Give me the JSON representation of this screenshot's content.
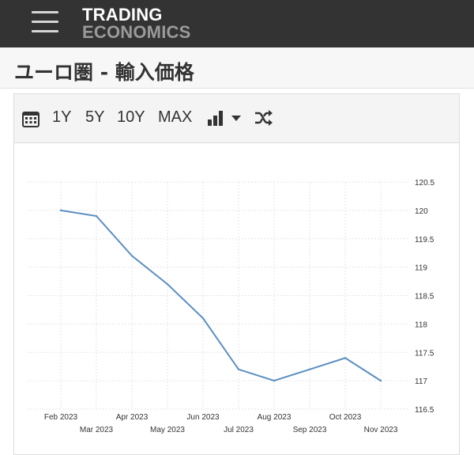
{
  "header": {
    "logo_line1": "TRADING",
    "logo_line2": "ECONOMICS"
  },
  "page": {
    "title": "ユーロ圏 - 輸入価格"
  },
  "toolbar": {
    "icons": [
      "calendar-icon",
      "bar-chart-icon",
      "caret-down-icon",
      "shuffle-icon"
    ],
    "range_1y": "1Y",
    "range_5y": "5Y",
    "range_10y": "10Y",
    "range_max": "MAX"
  },
  "colors": {
    "line": "#5b8fc2",
    "topbar": "#333333",
    "grid": "#e6e6e6"
  },
  "chart_data": {
    "type": "line",
    "x": [
      "Feb 2023",
      "Mar 2023",
      "Apr 2023",
      "May 2023",
      "Jun 2023",
      "Jul 2023",
      "Aug 2023",
      "Sep 2023",
      "Oct 2023",
      "Nov 2023"
    ],
    "series": [
      {
        "values": [
          120.0,
          119.9,
          119.2,
          118.7,
          118.1,
          117.2,
          117.0,
          117.2,
          117.4,
          117.0
        ]
      }
    ],
    "ylim": [
      116.5,
      120.5
    ],
    "yticks": [
      "116.5",
      "117",
      "117.5",
      "118",
      "118.5",
      "119",
      "119.5",
      "120",
      "120.5"
    ],
    "y_axis_side": "right",
    "grid": true
  }
}
